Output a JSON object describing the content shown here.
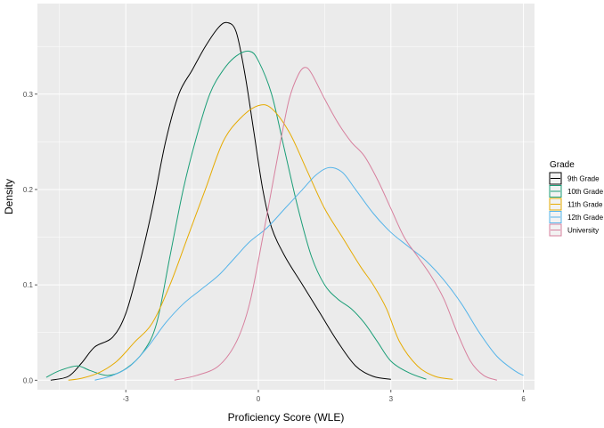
{
  "chart_data": {
    "type": "line",
    "xlabel": "Proficiency Score (WLE)",
    "ylabel": "Density",
    "xlim": [
      -5.0,
      6.25
    ],
    "ylim": [
      -0.01,
      0.395
    ],
    "x_ticks": [
      -3,
      0,
      3,
      6
    ],
    "x_tick_labels": [
      "-3",
      "0",
      "3",
      "6"
    ],
    "y_ticks": [
      0.0,
      0.1,
      0.2,
      0.3
    ],
    "y_tick_labels": [
      "0.0",
      "0.1",
      "0.2",
      "0.3"
    ],
    "grid": true,
    "background": "#ebebeb",
    "legend_title": "Grade",
    "legend_position": "right",
    "series": [
      {
        "name": "9th Grade",
        "color": "#000000",
        "points": [
          [
            -4.7,
            0.0
          ],
          [
            -4.3,
            0.004
          ],
          [
            -4.0,
            0.018
          ],
          [
            -3.7,
            0.035
          ],
          [
            -3.3,
            0.045
          ],
          [
            -3.0,
            0.07
          ],
          [
            -2.7,
            0.12
          ],
          [
            -2.4,
            0.18
          ],
          [
            -2.1,
            0.25
          ],
          [
            -1.8,
            0.3
          ],
          [
            -1.5,
            0.325
          ],
          [
            -1.2,
            0.35
          ],
          [
            -0.9,
            0.37
          ],
          [
            -0.7,
            0.375
          ],
          [
            -0.5,
            0.365
          ],
          [
            -0.3,
            0.32
          ],
          [
            -0.1,
            0.26
          ],
          [
            0.1,
            0.2
          ],
          [
            0.3,
            0.16
          ],
          [
            0.6,
            0.13
          ],
          [
            1.0,
            0.1
          ],
          [
            1.4,
            0.07
          ],
          [
            1.8,
            0.04
          ],
          [
            2.2,
            0.015
          ],
          [
            2.6,
            0.004
          ],
          [
            3.0,
            0.001
          ]
        ]
      },
      {
        "name": "10th Grade",
        "color": "#1b9e77",
        "points": [
          [
            -4.8,
            0.003
          ],
          [
            -4.5,
            0.01
          ],
          [
            -4.1,
            0.015
          ],
          [
            -3.8,
            0.01
          ],
          [
            -3.4,
            0.005
          ],
          [
            -3.0,
            0.012
          ],
          [
            -2.6,
            0.03
          ],
          [
            -2.3,
            0.06
          ],
          [
            -2.0,
            0.13
          ],
          [
            -1.7,
            0.2
          ],
          [
            -1.4,
            0.255
          ],
          [
            -1.1,
            0.3
          ],
          [
            -0.8,
            0.325
          ],
          [
            -0.5,
            0.34
          ],
          [
            -0.2,
            0.345
          ],
          [
            0.0,
            0.335
          ],
          [
            0.3,
            0.3
          ],
          [
            0.6,
            0.24
          ],
          [
            0.9,
            0.18
          ],
          [
            1.2,
            0.13
          ],
          [
            1.5,
            0.1
          ],
          [
            1.8,
            0.085
          ],
          [
            2.1,
            0.075
          ],
          [
            2.4,
            0.06
          ],
          [
            2.7,
            0.04
          ],
          [
            3.0,
            0.02
          ],
          [
            3.4,
            0.008
          ],
          [
            3.8,
            0.001
          ]
        ]
      },
      {
        "name": "11th Grade",
        "color": "#e6ab02",
        "points": [
          [
            -4.3,
            0.0
          ],
          [
            -4.0,
            0.002
          ],
          [
            -3.6,
            0.008
          ],
          [
            -3.2,
            0.02
          ],
          [
            -2.8,
            0.04
          ],
          [
            -2.4,
            0.06
          ],
          [
            -2.0,
            0.1
          ],
          [
            -1.6,
            0.15
          ],
          [
            -1.2,
            0.2
          ],
          [
            -0.8,
            0.25
          ],
          [
            -0.4,
            0.275
          ],
          [
            0.0,
            0.288
          ],
          [
            0.3,
            0.285
          ],
          [
            0.7,
            0.26
          ],
          [
            1.1,
            0.22
          ],
          [
            1.5,
            0.18
          ],
          [
            1.9,
            0.15
          ],
          [
            2.3,
            0.12
          ],
          [
            2.6,
            0.1
          ],
          [
            2.9,
            0.075
          ],
          [
            3.2,
            0.04
          ],
          [
            3.6,
            0.015
          ],
          [
            4.0,
            0.004
          ],
          [
            4.4,
            0.001
          ]
        ]
      },
      {
        "name": "12th Grade",
        "color": "#56b4e9",
        "points": [
          [
            -3.7,
            0.0
          ],
          [
            -3.3,
            0.005
          ],
          [
            -2.9,
            0.015
          ],
          [
            -2.5,
            0.035
          ],
          [
            -2.1,
            0.06
          ],
          [
            -1.7,
            0.08
          ],
          [
            -1.3,
            0.095
          ],
          [
            -0.9,
            0.11
          ],
          [
            -0.5,
            0.13
          ],
          [
            -0.2,
            0.145
          ],
          [
            0.2,
            0.16
          ],
          [
            0.6,
            0.18
          ],
          [
            1.0,
            0.2
          ],
          [
            1.3,
            0.215
          ],
          [
            1.6,
            0.223
          ],
          [
            1.9,
            0.218
          ],
          [
            2.2,
            0.2
          ],
          [
            2.6,
            0.175
          ],
          [
            3.0,
            0.155
          ],
          [
            3.4,
            0.14
          ],
          [
            3.8,
            0.125
          ],
          [
            4.2,
            0.105
          ],
          [
            4.6,
            0.08
          ],
          [
            5.0,
            0.05
          ],
          [
            5.4,
            0.025
          ],
          [
            5.8,
            0.01
          ],
          [
            6.0,
            0.005
          ]
        ]
      },
      {
        "name": "University",
        "color": "#d7809e",
        "points": [
          [
            -1.9,
            0.0
          ],
          [
            -1.4,
            0.005
          ],
          [
            -0.9,
            0.015
          ],
          [
            -0.5,
            0.04
          ],
          [
            -0.2,
            0.08
          ],
          [
            0.1,
            0.15
          ],
          [
            0.3,
            0.2
          ],
          [
            0.5,
            0.25
          ],
          [
            0.7,
            0.295
          ],
          [
            0.9,
            0.32
          ],
          [
            1.05,
            0.328
          ],
          [
            1.2,
            0.322
          ],
          [
            1.5,
            0.295
          ],
          [
            1.8,
            0.27
          ],
          [
            2.1,
            0.25
          ],
          [
            2.4,
            0.235
          ],
          [
            2.7,
            0.21
          ],
          [
            3.0,
            0.18
          ],
          [
            3.3,
            0.15
          ],
          [
            3.6,
            0.13
          ],
          [
            3.9,
            0.11
          ],
          [
            4.2,
            0.085
          ],
          [
            4.5,
            0.05
          ],
          [
            4.8,
            0.02
          ],
          [
            5.1,
            0.005
          ],
          [
            5.4,
            0.0
          ]
        ]
      }
    ]
  }
}
